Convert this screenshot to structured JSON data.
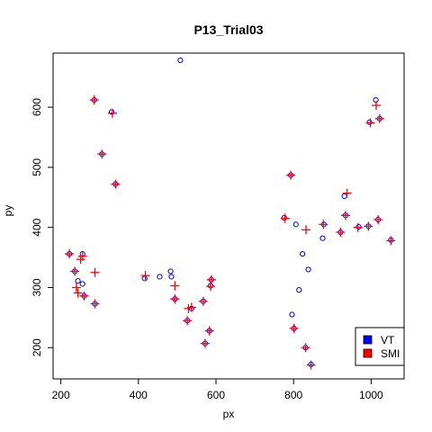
{
  "chart_data": {
    "type": "scatter",
    "title": "P13_Trial03",
    "xlabel": "px",
    "ylabel": "py",
    "xlim": [
      180,
      1085
    ],
    "ylim": [
      148,
      690
    ],
    "x_ticks": [
      200,
      400,
      600,
      800,
      1000
    ],
    "y_ticks": [
      200,
      300,
      400,
      500,
      600
    ],
    "grid": false,
    "legend_position": "bottom-right",
    "series": [
      {
        "name": "VT",
        "marker": "open-circle",
        "color": "#0000ff",
        "points": [
          [
            222,
            356
          ],
          [
            236,
            327
          ],
          [
            244,
            311
          ],
          [
            256,
            356
          ],
          [
            256,
            306
          ],
          [
            260,
            286
          ],
          [
            288,
            273
          ],
          [
            286,
            612
          ],
          [
            306,
            522
          ],
          [
            331,
            592
          ],
          [
            341,
            472
          ],
          [
            416,
            315
          ],
          [
            455,
            318
          ],
          [
            483,
            327
          ],
          [
            485,
            318
          ],
          [
            494,
            281
          ],
          [
            508,
            678
          ],
          [
            526,
            245
          ],
          [
            537,
            265
          ],
          [
            567,
            277
          ],
          [
            572,
            207
          ],
          [
            583,
            228
          ],
          [
            586,
            303
          ],
          [
            588,
            313
          ],
          [
            776,
            416
          ],
          [
            793,
            487
          ],
          [
            796,
            255
          ],
          [
            801,
            232
          ],
          [
            806,
            405
          ],
          [
            814,
            296
          ],
          [
            823,
            356
          ],
          [
            831,
            200
          ],
          [
            838,
            330
          ],
          [
            845,
            172
          ],
          [
            875,
            382
          ],
          [
            878,
            405
          ],
          [
            921,
            392
          ],
          [
            931,
            452
          ],
          [
            934,
            420
          ],
          [
            968,
            401
          ],
          [
            993,
            402
          ],
          [
            996,
            575
          ],
          [
            1012,
            612
          ],
          [
            1018,
            413
          ],
          [
            1022,
            581
          ],
          [
            1051,
            379
          ]
        ]
      },
      {
        "name": "SMI",
        "marker": "plus",
        "color": "#ff0000",
        "points": [
          [
            222,
            356
          ],
          [
            236,
            327
          ],
          [
            240,
            300
          ],
          [
            244,
            291
          ],
          [
            251,
            347
          ],
          [
            256,
            352
          ],
          [
            260,
            286
          ],
          [
            288,
            325
          ],
          [
            288,
            273
          ],
          [
            286,
            612
          ],
          [
            306,
            522
          ],
          [
            333,
            590
          ],
          [
            341,
            472
          ],
          [
            418,
            320
          ],
          [
            494,
            303
          ],
          [
            494,
            281
          ],
          [
            526,
            245
          ],
          [
            529,
            265
          ],
          [
            537,
            267
          ],
          [
            567,
            277
          ],
          [
            572,
            207
          ],
          [
            583,
            228
          ],
          [
            586,
            302
          ],
          [
            588,
            313
          ],
          [
            778,
            415
          ],
          [
            793,
            487
          ],
          [
            801,
            232
          ],
          [
            831,
            200
          ],
          [
            832,
            396
          ],
          [
            845,
            171
          ],
          [
            877,
            405
          ],
          [
            921,
            392
          ],
          [
            934,
            420
          ],
          [
            938,
            457
          ],
          [
            966,
            400
          ],
          [
            993,
            402
          ],
          [
            998,
            574
          ],
          [
            1013,
            603
          ],
          [
            1018,
            413
          ],
          [
            1022,
            581
          ],
          [
            1051,
            378
          ]
        ]
      }
    ]
  }
}
